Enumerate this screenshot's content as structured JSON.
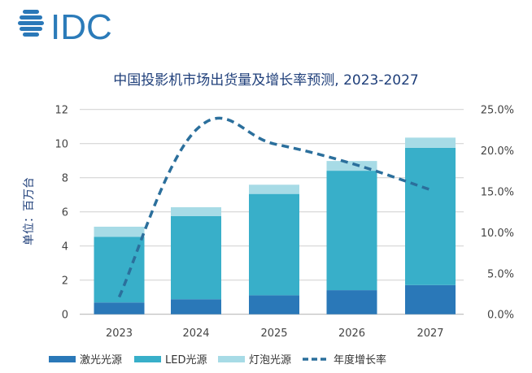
{
  "logo": {
    "text": "IDC"
  },
  "colors": {
    "laser": "#2a78b8",
    "led": "#38afc9",
    "bulb": "#a7dbe6",
    "growth": "#2b6f9c"
  },
  "chart_data": {
    "type": "bar",
    "stacked": true,
    "title": "中国投影机市场出货量及增长率预测, 2023-2027",
    "ylabel": "单位：百万台",
    "y2label": "",
    "categories": [
      "2023",
      "2024",
      "2025",
      "2026",
      "2027"
    ],
    "ylim": [
      0,
      12
    ],
    "yticks": [
      "0",
      "2",
      "4",
      "6",
      "8",
      "10",
      "12"
    ],
    "y2lim": [
      0,
      25
    ],
    "y2ticks": [
      "0.0%",
      "5.0%",
      "10.0%",
      "15.0%",
      "20.0%",
      "25.0%"
    ],
    "grid": true,
    "legend_position": "bottom",
    "series": [
      {
        "name": "激光光源",
        "type": "bar",
        "values": [
          0.69,
          0.88,
          1.11,
          1.41,
          1.71
        ]
      },
      {
        "name": "LED光源",
        "type": "bar",
        "values": [
          3.85,
          4.87,
          5.94,
          7.0,
          8.04
        ]
      },
      {
        "name": "灯泡光源",
        "type": "bar",
        "values": [
          0.59,
          0.52,
          0.54,
          0.57,
          0.6
        ]
      },
      {
        "name": "年度增长率",
        "type": "line",
        "axis": "right",
        "style": "dashed",
        "values": [
          2.1,
          22.5,
          20.8,
          18.4,
          15.2
        ]
      }
    ]
  }
}
